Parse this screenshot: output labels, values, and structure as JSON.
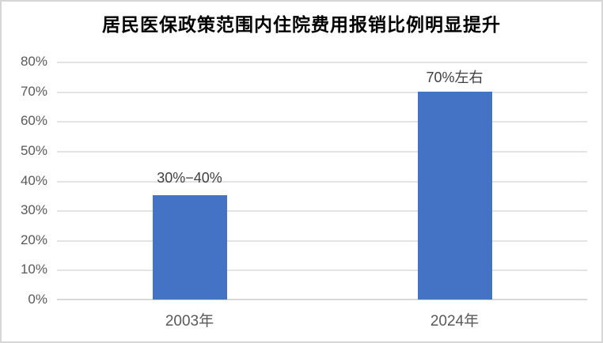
{
  "window": {
    "background_color": "#ffffff",
    "frame_border_color": "#d6d6d6"
  },
  "chart_data": {
    "type": "bar",
    "title": "居民医保政策范围内住院费用报销比例明显提升",
    "categories": [
      "2003年",
      "2024年"
    ],
    "values": [
      35,
      70
    ],
    "data_labels": [
      "30%−40%",
      "70%左右"
    ],
    "ylabel": "",
    "xlabel": "",
    "ylim": [
      0,
      80
    ],
    "yticks": [
      0,
      10,
      20,
      30,
      40,
      50,
      60,
      70,
      80
    ],
    "ytick_labels": [
      "0%",
      "10%",
      "20%",
      "30%",
      "40%",
      "50%",
      "60%",
      "70%",
      "80%"
    ],
    "grid": true,
    "legend": null,
    "bar_color": "#4472C4",
    "gridline_color": "#e3e3e3",
    "axis_line_color": "#d9d9d9",
    "tick_label_color": "#595959",
    "title_color": "#000000",
    "data_label_color": "#404040"
  }
}
